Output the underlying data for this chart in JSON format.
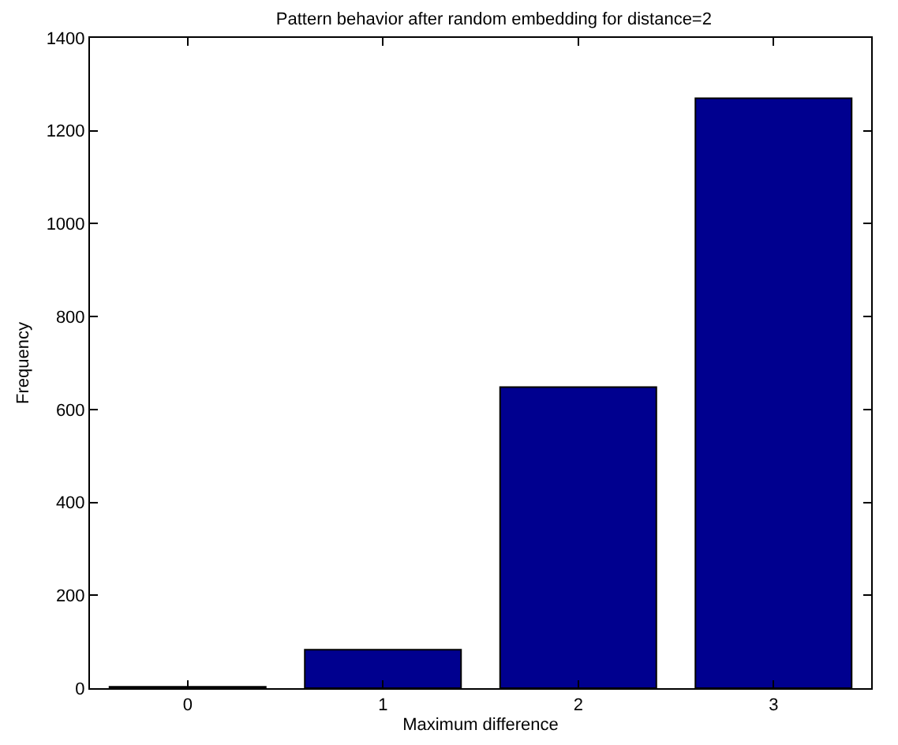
{
  "chart_data": {
    "type": "bar",
    "title": "Pattern behavior after random embedding for distance=2",
    "xlabel": "Maximum difference",
    "ylabel": "Frequency",
    "x": [
      0,
      1,
      2,
      3
    ],
    "values": [
      3,
      83,
      648,
      1270
    ],
    "color": "#00008f",
    "xlim": [
      -0.5,
      3.5
    ],
    "xticks": [
      0,
      1,
      2,
      3
    ],
    "ylim": [
      0,
      1400
    ],
    "yticks": [
      0,
      200,
      400,
      600,
      800,
      1000,
      1200,
      1400
    ],
    "grid": false,
    "legend": false
  }
}
